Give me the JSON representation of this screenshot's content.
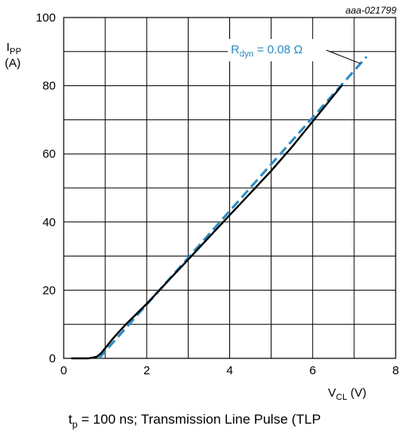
{
  "figure_id": "aaa-021799",
  "caption": {
    "prefix": "t",
    "prefix_sub": "p",
    "text": " = 100 ns; Transmission Line Pulse (TLP"
  },
  "colors": {
    "measured_curve": "#000000",
    "fit_line": "#2b8cc4",
    "grid": "#000000"
  },
  "chart_data": {
    "type": "line",
    "title": "",
    "xlabel_main": "V",
    "xlabel_sub": "CL",
    "xlabel_unit": " (V)",
    "ylabel_main": "I",
    "ylabel_sub": "PP",
    "ylabel_unit": "(A)",
    "xlim": [
      0,
      8
    ],
    "ylim": [
      0,
      100
    ],
    "xticks": [
      0,
      2,
      4,
      6,
      8
    ],
    "yticks": [
      0,
      20,
      40,
      60,
      80,
      100
    ],
    "xgrid_step": 1,
    "ygrid_step": 10,
    "grid": true,
    "series": [
      {
        "style": "solid",
        "color": "#000000",
        "x": [
          0.2,
          0.6,
          0.8,
          0.9,
          1.0,
          1.2,
          1.5,
          2.0,
          2.5,
          3.0,
          3.5,
          4.0,
          4.5,
          5.0,
          5.5,
          6.0,
          6.5,
          6.7
        ],
        "y": [
          0.0,
          0.0,
          0.5,
          1.5,
          3.0,
          6.0,
          10.0,
          16.0,
          22.5,
          29.0,
          35.5,
          42.0,
          48.5,
          55.0,
          62.0,
          69.5,
          77.0,
          80.0
        ]
      },
      {
        "style": "dashed",
        "color": "#2b8cc4",
        "x": [
          0.85,
          7.3
        ],
        "y": [
          0.0,
          88.5
        ]
      }
    ],
    "annotations": [
      {
        "text_main": "R",
        "text_sub": "dyn",
        "text_rest": " = 0.08 Ω",
        "color": "#2b8cc4",
        "leader_to_x": 7.15,
        "leader_to_y": 86.5
      }
    ]
  }
}
